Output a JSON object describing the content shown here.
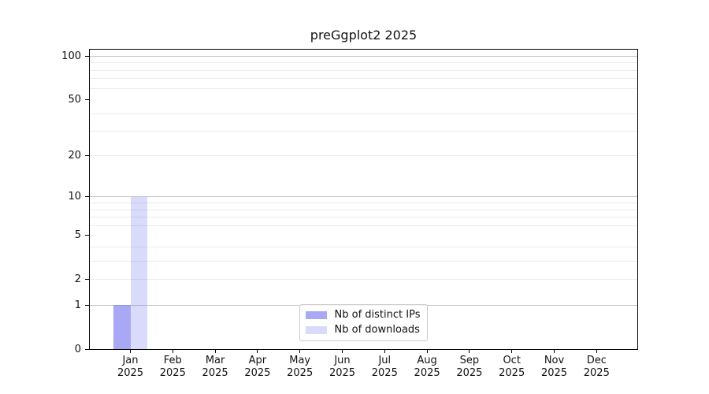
{
  "chart_data": {
    "type": "bar",
    "title": "preGgplot2 2025",
    "xlabel": "",
    "ylabel": "",
    "categories": [
      "Jan",
      "Feb",
      "Mar",
      "Apr",
      "May",
      "Jun",
      "Jul",
      "Aug",
      "Sep",
      "Oct",
      "Nov",
      "Dec"
    ],
    "category_year": "2025",
    "series": [
      {
        "name": "Nb of distinct IPs",
        "color": "rgba(122,122,240,0.65)",
        "values": [
          1,
          0,
          0,
          0,
          0,
          0,
          0,
          0,
          0,
          0,
          0,
          0
        ]
      },
      {
        "name": "Nb of downloads",
        "color": "rgba(122,122,240,0.28)",
        "values": [
          10,
          0,
          0,
          0,
          0,
          0,
          0,
          0,
          0,
          0,
          0,
          0
        ]
      }
    ],
    "yscale": "log1p",
    "ylim": [
      0,
      112
    ],
    "yticks": [
      0,
      1,
      2,
      5,
      10,
      20,
      50,
      100
    ],
    "grid_major": [
      1,
      10,
      100
    ],
    "grid_minor": [
      2,
      3,
      4,
      6,
      7,
      8,
      9,
      20,
      30,
      40,
      60,
      70,
      80,
      90
    ],
    "grid": true,
    "legend_position": "lower center"
  },
  "colors": {
    "axis": "#000000",
    "grid_major": "#c6c6c6",
    "grid_minor": "#ebebeb",
    "background": "#ffffff",
    "bar_base": "#7a7af0"
  }
}
